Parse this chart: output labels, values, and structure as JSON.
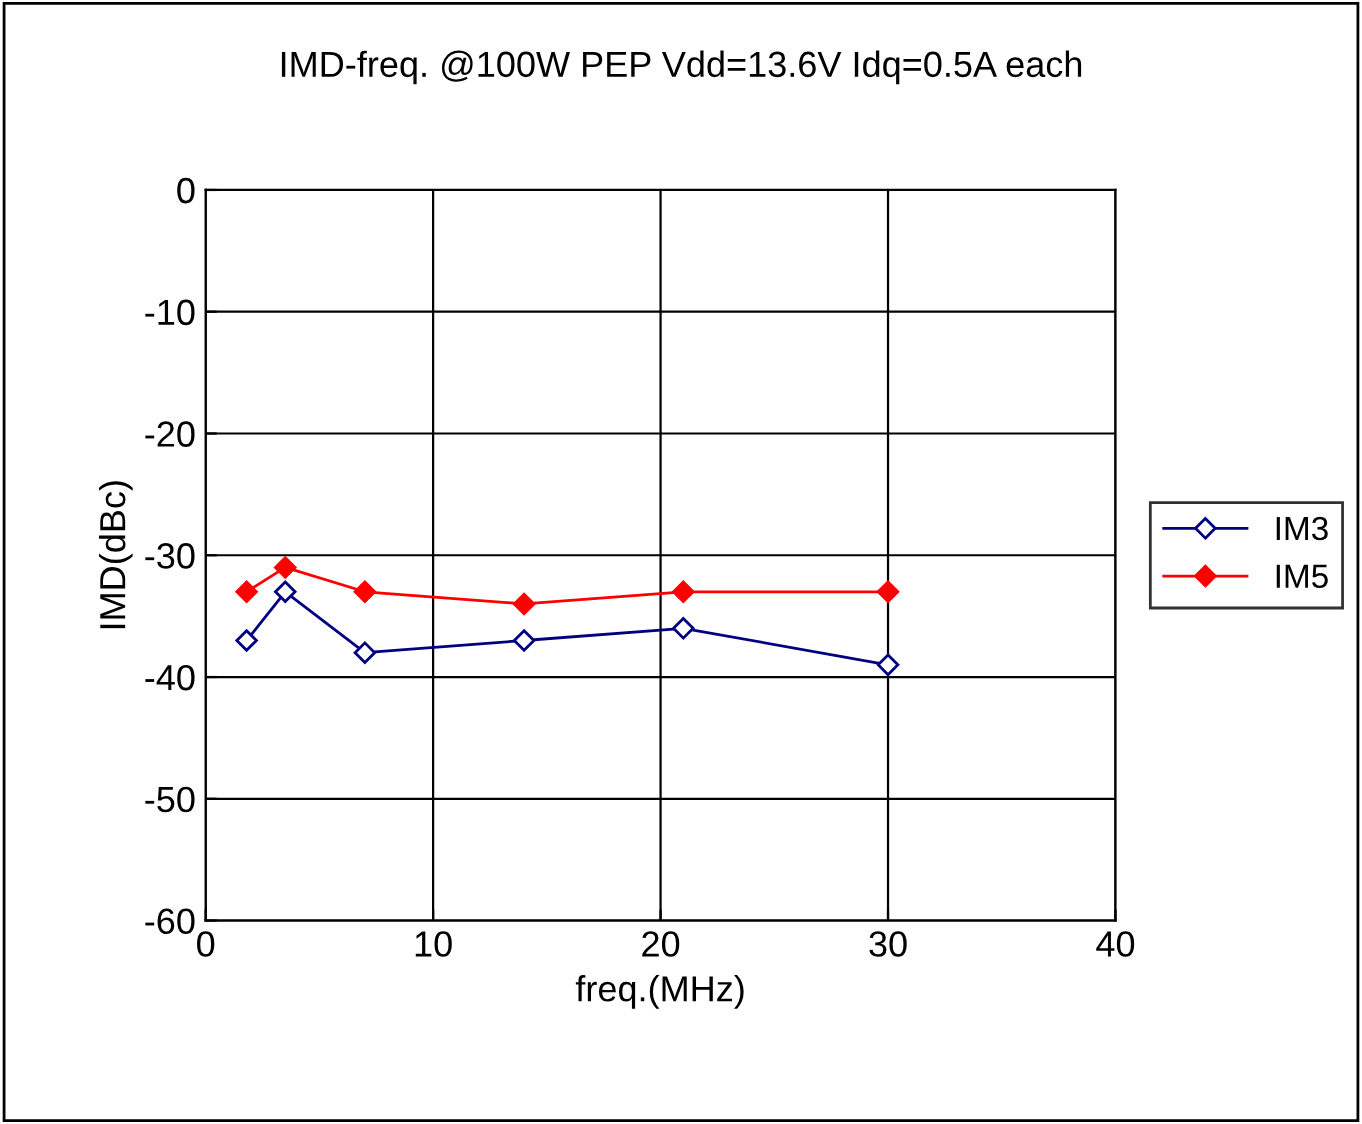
{
  "chart_data": {
    "type": "line",
    "title": "IMD-freq. @100W PEP Vdd=13.6V Idq=0.5A each",
    "xlabel": "freq.(MHz)",
    "ylabel": "IMD(dBc)",
    "x": [
      1.8,
      3.5,
      7,
      14,
      21,
      30
    ],
    "series": [
      {
        "name": "IM3",
        "color": "#000080",
        "values": [
          -37,
          -33,
          -38,
          -37,
          -36,
          -39
        ]
      },
      {
        "name": "IM5",
        "color": "#ff0000",
        "values": [
          -33,
          -31,
          -33,
          -34,
          -33,
          -33
        ]
      }
    ],
    "xlim": [
      0,
      40
    ],
    "xticks": [
      0,
      10,
      20,
      30,
      40
    ],
    "ylim": [
      -60,
      0
    ],
    "yticks": [
      -60,
      -50,
      -40,
      -30,
      -20,
      -10,
      0
    ],
    "grid": true,
    "legend": "right",
    "marker": "diamond",
    "line_style": "solid"
  }
}
